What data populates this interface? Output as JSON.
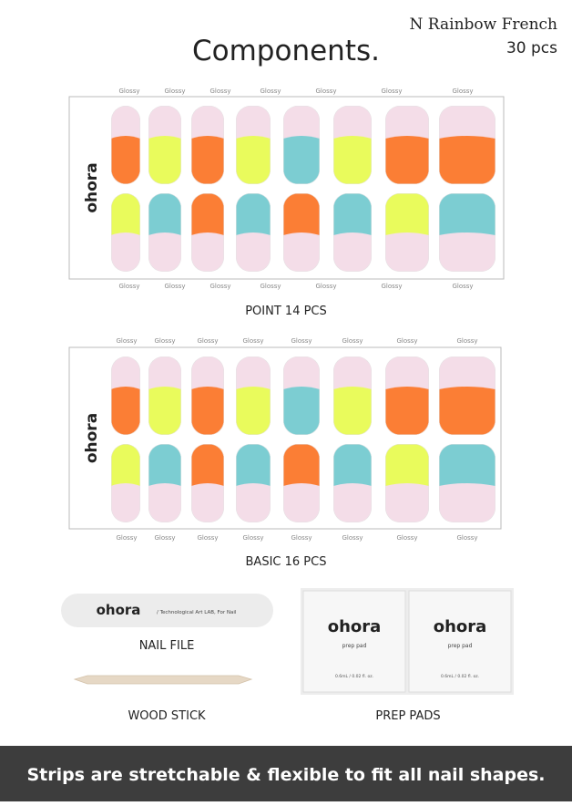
{
  "header": {
    "product": "N Rainbow French",
    "count": "30 pcs",
    "title": "Components."
  },
  "sheets": [
    {
      "brand": "ohora",
      "top_labels": [
        "Glossy",
        "Glossy",
        "Glossy",
        "Glossy",
        "Glossy",
        "Glossy",
        "Glossy"
      ],
      "bottom_labels": [
        "Glossy",
        "Glossy",
        "Glossy",
        "Glossy",
        "Glossy",
        "Glossy",
        "Glossy"
      ],
      "caption": "POINT 14 PCS"
    },
    {
      "brand": "ohora",
      "top_labels": [
        "Glossy",
        "Glossy",
        "Glossy",
        "Glossy",
        "Glossy",
        "Glossy",
        "Glossy",
        "Glossy"
      ],
      "bottom_labels": [
        "Glossy",
        "Glossy",
        "Glossy",
        "Glossy",
        "Glossy",
        "Glossy",
        "Glossy",
        "Glossy"
      ],
      "caption": "BASIC 16 PCS"
    }
  ],
  "accessories": {
    "nail_file": {
      "brand": "ohora",
      "tagline": "/  Technological Art LAB, For Nail",
      "caption": "NAIL FILE"
    },
    "wood_stick": {
      "caption": "WOOD STICK"
    },
    "prep_pads": {
      "pads": [
        {
          "brand": "ohora",
          "label": "prep pad",
          "volume": "0.6mL / 0.02 fl. oz."
        },
        {
          "brand": "ohora",
          "label": "prep pad",
          "volume": "0.6mL / 0.02 fl. oz."
        }
      ],
      "caption": "PREP PADS"
    }
  },
  "banner": "Strips are stretchable & flexible to fit all nail shapes."
}
